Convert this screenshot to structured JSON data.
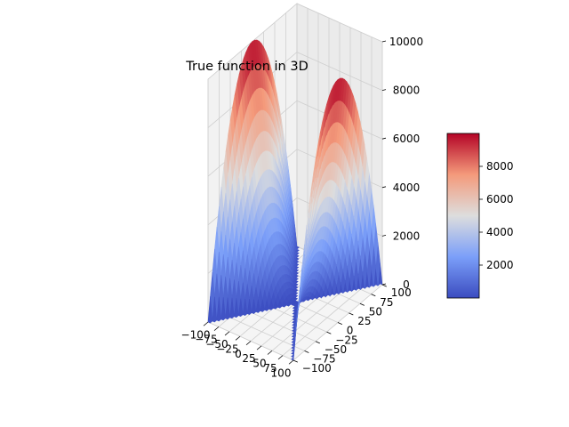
{
  "chart_data": {
    "type": "surface3d",
    "title": "True function in 3D",
    "function": "z = x^2 - y^2 (saddle; rows whose |x| exceeds |y| are clipped out, leaving a V-shaped slot)",
    "x_range": [
      -100,
      100
    ],
    "y_range": [
      -100,
      100
    ],
    "z_range": [
      0,
      10000
    ],
    "x_ticks": [
      -100,
      -75,
      -50,
      -25,
      0,
      25,
      50,
      75,
      100
    ],
    "x_tick_labels": [
      "−100",
      "−75",
      "−50",
      "−25",
      "0",
      "25",
      "50",
      "75",
      "100"
    ],
    "y_ticks": [
      -100,
      -75,
      -50,
      -25,
      0,
      25,
      50,
      75,
      100
    ],
    "y_tick_labels": [
      "−100",
      "−75",
      "−50",
      "−25",
      "0",
      "25",
      "50",
      "75",
      "100"
    ],
    "z_ticks": [
      0,
      2000,
      4000,
      6000,
      8000,
      10000
    ],
    "z_tick_labels": [
      "0",
      "2000",
      "4000",
      "6000",
      "8000",
      "10000"
    ],
    "colormap": "coolwarm",
    "colorbar": {
      "range": [
        0,
        10000
      ],
      "ticks": [
        2000,
        4000,
        6000,
        8000
      ],
      "tick_labels": [
        "2000",
        "4000",
        "6000",
        "8000"
      ]
    },
    "grid": true,
    "legend": false
  }
}
